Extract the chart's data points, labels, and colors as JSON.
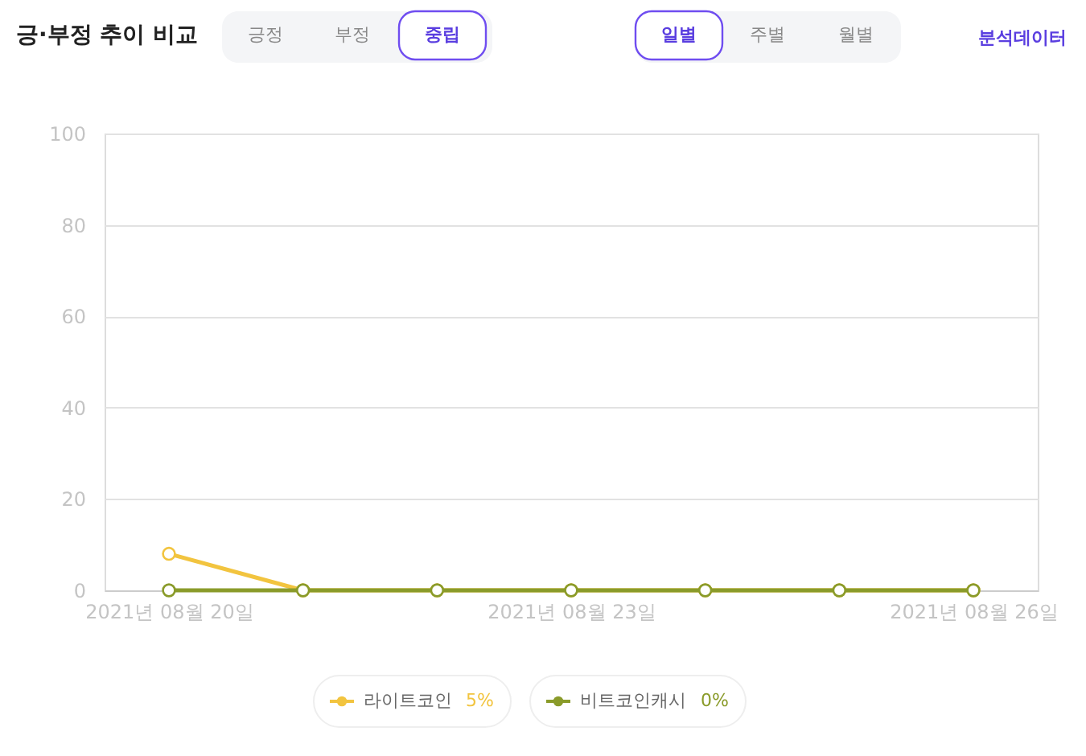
{
  "chart_data": {
    "type": "line",
    "title": "긍·부정 추이 비교",
    "categories": [
      "2021년 08월 20일",
      null,
      null,
      "2021년 08월 23일",
      null,
      null,
      "2021년 08월 26일"
    ],
    "series": [
      {
        "name": "라이트코인",
        "color": "#f2c43f",
        "values": [
          8,
          0,
          0,
          0,
          0,
          0,
          0
        ]
      },
      {
        "name": "비트코인캐시",
        "color": "#8a9b2a",
        "values": [
          0,
          0,
          0,
          0,
          0,
          0,
          0
        ]
      }
    ],
    "ylim": [
      0,
      100
    ],
    "yticks": [
      0,
      20,
      40,
      60,
      80,
      100
    ],
    "grid": "y",
    "legend": "bottom",
    "marker": "circle",
    "line_style": "solid",
    "annotations": [
      "긍정",
      "부정",
      "중립",
      "일별",
      "주별",
      "월별",
      "분석데이터",
      "5%",
      "0%"
    ]
  }
}
